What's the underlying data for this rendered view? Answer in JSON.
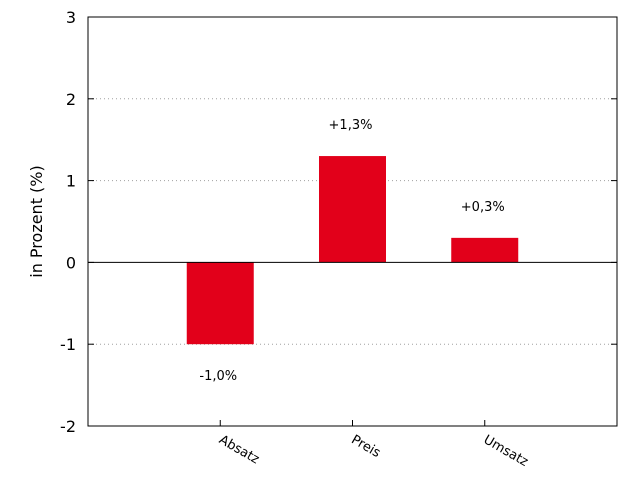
{
  "chart_data": {
    "type": "bar",
    "categories": [
      "Absatz",
      "Preis",
      "Umsatz"
    ],
    "values": [
      -1.0,
      1.3,
      0.3
    ],
    "data_labels": [
      "-1,0%",
      "+1,3%",
      "+0,3%"
    ],
    "ylabel": "in Prozent (%)",
    "xlabel": "",
    "ylim": [
      -2,
      3
    ],
    "yticks": [
      {
        "value": -2,
        "label": "-2"
      },
      {
        "value": -1,
        "label": "-1"
      },
      {
        "value": 0,
        "label": "0"
      },
      {
        "value": 1,
        "label": "1"
      },
      {
        "value": 2,
        "label": "2"
      },
      {
        "value": 3,
        "label": "3"
      }
    ],
    "grid": "horizontal dotted",
    "bar_color": "#e2001a"
  }
}
